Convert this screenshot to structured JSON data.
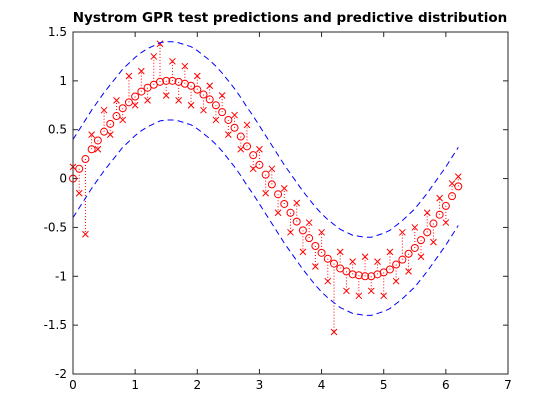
{
  "chart_data": {
    "type": "scatter",
    "title": "Nystrom GPR test predictions and predictive distribution",
    "x": [
      0,
      0.1,
      0.2,
      0.3,
      0.4,
      0.5,
      0.6,
      0.7,
      0.8,
      0.9,
      1.0,
      1.1,
      1.2,
      1.3,
      1.4,
      1.5,
      1.6,
      1.7,
      1.8,
      1.9,
      2.0,
      2.1,
      2.2,
      2.3,
      2.4,
      2.5,
      2.6,
      2.7,
      2.8,
      2.9,
      3.0,
      3.1,
      3.2,
      3.3,
      3.4,
      3.5,
      3.6,
      3.7,
      3.8,
      3.9,
      4.0,
      4.1,
      4.2,
      4.3,
      4.4,
      4.5,
      4.6,
      4.7,
      4.8,
      4.9,
      5.0,
      5.1,
      5.2,
      5.3,
      5.4,
      5.5,
      5.6,
      5.7,
      5.8,
      5.9,
      6.0,
      6.1,
      6.2
    ],
    "series": [
      {
        "color": "#ff0000",
        "marker": "x",
        "values": [
          0.12,
          -0.15,
          -0.57,
          0.45,
          0.3,
          0.7,
          0.45,
          0.8,
          0.6,
          1.05,
          0.75,
          1.1,
          0.8,
          1.25,
          1.38,
          0.85,
          1.2,
          0.8,
          1.15,
          0.75,
          1.05,
          0.7,
          0.95,
          0.6,
          0.85,
          0.45,
          0.65,
          0.3,
          0.55,
          0.1,
          0.3,
          -0.15,
          0.1,
          -0.35,
          -0.1,
          -0.55,
          -0.25,
          -0.75,
          -0.45,
          -0.9,
          -0.55,
          -1.05,
          -1.57,
          -0.75,
          -1.15,
          -0.85,
          -1.2,
          -0.8,
          -1.15,
          -0.85,
          -1.2,
          -0.75,
          -1.05,
          -0.55,
          -0.95,
          -0.5,
          -0.8,
          -0.35,
          -0.65,
          -0.2,
          -0.45,
          -0.05,
          0.02
        ]
      },
      {
        "color": "#ff0000",
        "marker": "o",
        "values": [
          0,
          0.1,
          0.2,
          0.3,
          0.39,
          0.48,
          0.56,
          0.64,
          0.72,
          0.78,
          0.84,
          0.89,
          0.93,
          0.96,
          0.99,
          1.0,
          1.0,
          0.99,
          0.97,
          0.95,
          0.91,
          0.86,
          0.81,
          0.75,
          0.68,
          0.6,
          0.52,
          0.43,
          0.33,
          0.24,
          0.14,
          0.04,
          -0.06,
          -0.16,
          -0.26,
          -0.35,
          -0.44,
          -0.53,
          -0.61,
          -0.69,
          -0.76,
          -0.82,
          -0.87,
          -0.92,
          -0.95,
          -0.98,
          -0.99,
          -1.0,
          -1.0,
          -0.98,
          -0.96,
          -0.93,
          -0.88,
          -0.83,
          -0.77,
          -0.71,
          -0.63,
          -0.55,
          -0.46,
          -0.37,
          -0.28,
          -0.18,
          -0.08
        ]
      },
      {
        "color": "#0000ff",
        "marker": "dashed",
        "values": [
          0.4,
          0.5,
          0.6,
          0.7,
          0.79,
          0.88,
          0.96,
          1.04,
          1.12,
          1.18,
          1.24,
          1.29,
          1.33,
          1.36,
          1.39,
          1.4,
          1.4,
          1.39,
          1.37,
          1.35,
          1.31,
          1.26,
          1.21,
          1.15,
          1.08,
          1.0,
          0.92,
          0.83,
          0.73,
          0.64,
          0.54,
          0.44,
          0.34,
          0.24,
          0.14,
          0.05,
          -0.04,
          -0.13,
          -0.21,
          -0.29,
          -0.36,
          -0.42,
          -0.47,
          -0.52,
          -0.55,
          -0.58,
          -0.59,
          -0.6,
          -0.6,
          -0.58,
          -0.56,
          -0.53,
          -0.48,
          -0.43,
          -0.37,
          -0.31,
          -0.23,
          -0.15,
          -0.06,
          0.03,
          0.12,
          0.22,
          0.32
        ]
      },
      {
        "color": "#0000ff",
        "marker": "dashed",
        "values": [
          -0.4,
          -0.3,
          -0.2,
          -0.1,
          -0.01,
          0.08,
          0.16,
          0.24,
          0.32,
          0.38,
          0.44,
          0.49,
          0.53,
          0.56,
          0.59,
          0.6,
          0.6,
          0.59,
          0.57,
          0.55,
          0.51,
          0.46,
          0.41,
          0.35,
          0.28,
          0.2,
          0.12,
          0.03,
          -0.07,
          -0.16,
          -0.26,
          -0.36,
          -0.46,
          -0.56,
          -0.66,
          -0.75,
          -0.84,
          -0.93,
          -1.01,
          -1.09,
          -1.16,
          -1.22,
          -1.27,
          -1.32,
          -1.35,
          -1.38,
          -1.39,
          -1.4,
          -1.4,
          -1.38,
          -1.36,
          -1.33,
          -1.28,
          -1.23,
          -1.17,
          -1.11,
          -1.03,
          -0.95,
          -0.86,
          -0.77,
          -0.68,
          -0.58,
          -0.48
        ]
      }
    ],
    "xlim": [
      0,
      7
    ],
    "xticks": [
      0,
      1,
      2,
      3,
      4,
      5,
      6,
      7
    ],
    "ylim": [
      -2,
      1.5
    ],
    "yticks": [
      -2,
      -1.5,
      -1,
      -0.5,
      0,
      0.5,
      1,
      1.5
    ]
  }
}
